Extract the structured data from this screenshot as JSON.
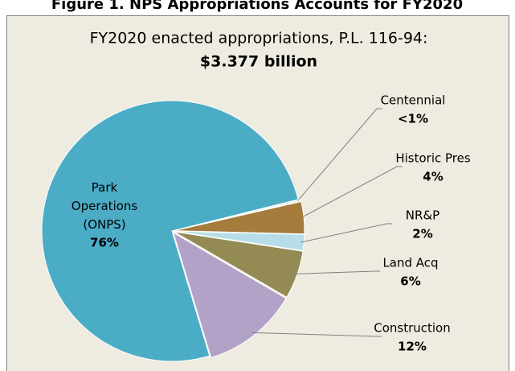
{
  "figure_title": "Figure 1. NPS Appropriations Accounts for FY2020",
  "chart_data": {
    "type": "pie",
    "title": "FY2020 enacted appropriations, P.L. 116-94:",
    "subtitle": "$3.377 billion",
    "categories": [
      "Centennial",
      "Historic Pres",
      "NR&P",
      "Land Acq",
      "Construction",
      "Park Operations (ONPS)"
    ],
    "values": [
      0.3,
      4,
      2,
      6,
      12,
      76
    ],
    "value_labels": [
      "<1%",
      "4%",
      "2%",
      "6%",
      "12%",
      "76%"
    ],
    "colors": [
      "#f2f2f2",
      "#a67c3d",
      "#b7dee8",
      "#948a54",
      "#b3a2c7",
      "#4bacc6"
    ]
  }
}
